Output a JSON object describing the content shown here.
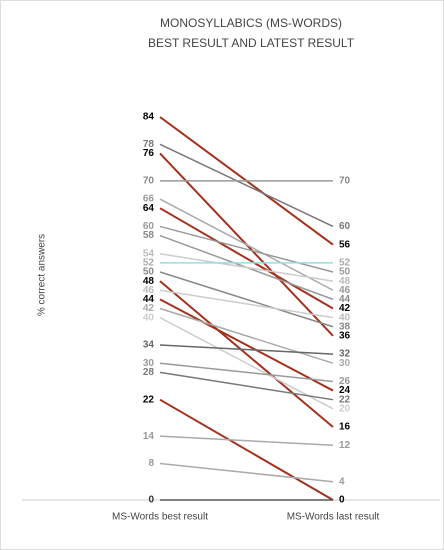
{
  "chart_data": {
    "type": "slope",
    "title": [
      "MONOSYLLABICS (MS-WORDS)",
      "BEST RESULT AND LATEST RESULT"
    ],
    "y_label": "% correct answers",
    "categories": [
      "MS-Words best result",
      "MS-Words last result"
    ],
    "ylim": [
      0,
      84
    ],
    "series": [
      {
        "color": "#a3311e",
        "label_color": "#000",
        "values": [
          84,
          56
        ]
      },
      {
        "color": "#777",
        "label_color": "#777",
        "values": [
          78,
          60
        ]
      },
      {
        "color": "#a3311e",
        "label_color": "#000",
        "values": [
          76,
          36
        ]
      },
      {
        "color": "#999",
        "label_color": "#888",
        "values": [
          70,
          70
        ]
      },
      {
        "color": "#aaa",
        "label_color": "#999",
        "values": [
          66,
          46
        ]
      },
      {
        "color": "#a3311e",
        "label_color": "#000",
        "values": [
          64,
          42
        ]
      },
      {
        "color": "#999",
        "label_color": "#999",
        "values": [
          60,
          50
        ]
      },
      {
        "color": "#999",
        "label_color": "#888",
        "values": [
          58,
          44
        ]
      },
      {
        "color": "#ccc",
        "label_color": "#bbb",
        "values": [
          54,
          48
        ]
      },
      {
        "color": "#9dd",
        "label_color": "#aaa",
        "values": [
          52,
          52
        ]
      },
      {
        "color": "#888",
        "label_color": "#888",
        "values": [
          50,
          38
        ]
      },
      {
        "color": "#a3311e",
        "label_color": "#000",
        "values": [
          48,
          16
        ]
      },
      {
        "color": "#ccc",
        "label_color": "#bbb",
        "values": [
          46,
          40
        ]
      },
      {
        "color": "#a3311e",
        "label_color": "#000",
        "values": [
          44,
          24
        ]
      },
      {
        "color": "#aaa",
        "label_color": "#aaa",
        "values": [
          42,
          30
        ]
      },
      {
        "color": "#ccc",
        "label_color": "#ccc",
        "values": [
          40,
          20
        ]
      },
      {
        "color": "#666",
        "label_color": "#666",
        "values": [
          34,
          32
        ]
      },
      {
        "color": "#999",
        "label_color": "#999",
        "values": [
          30,
          26
        ]
      },
      {
        "color": "#777",
        "label_color": "#777",
        "values": [
          28,
          22
        ]
      },
      {
        "color": "#a3311e",
        "label_color": "#000",
        "values": [
          22,
          0
        ]
      },
      {
        "color": "#aaa",
        "label_color": "#999",
        "values": [
          14,
          12
        ]
      },
      {
        "color": "#aaa",
        "label_color": "#999",
        "values": [
          8,
          4
        ]
      },
      {
        "color": "#555",
        "label_color": "#333",
        "values": [
          0,
          0
        ]
      }
    ]
  }
}
